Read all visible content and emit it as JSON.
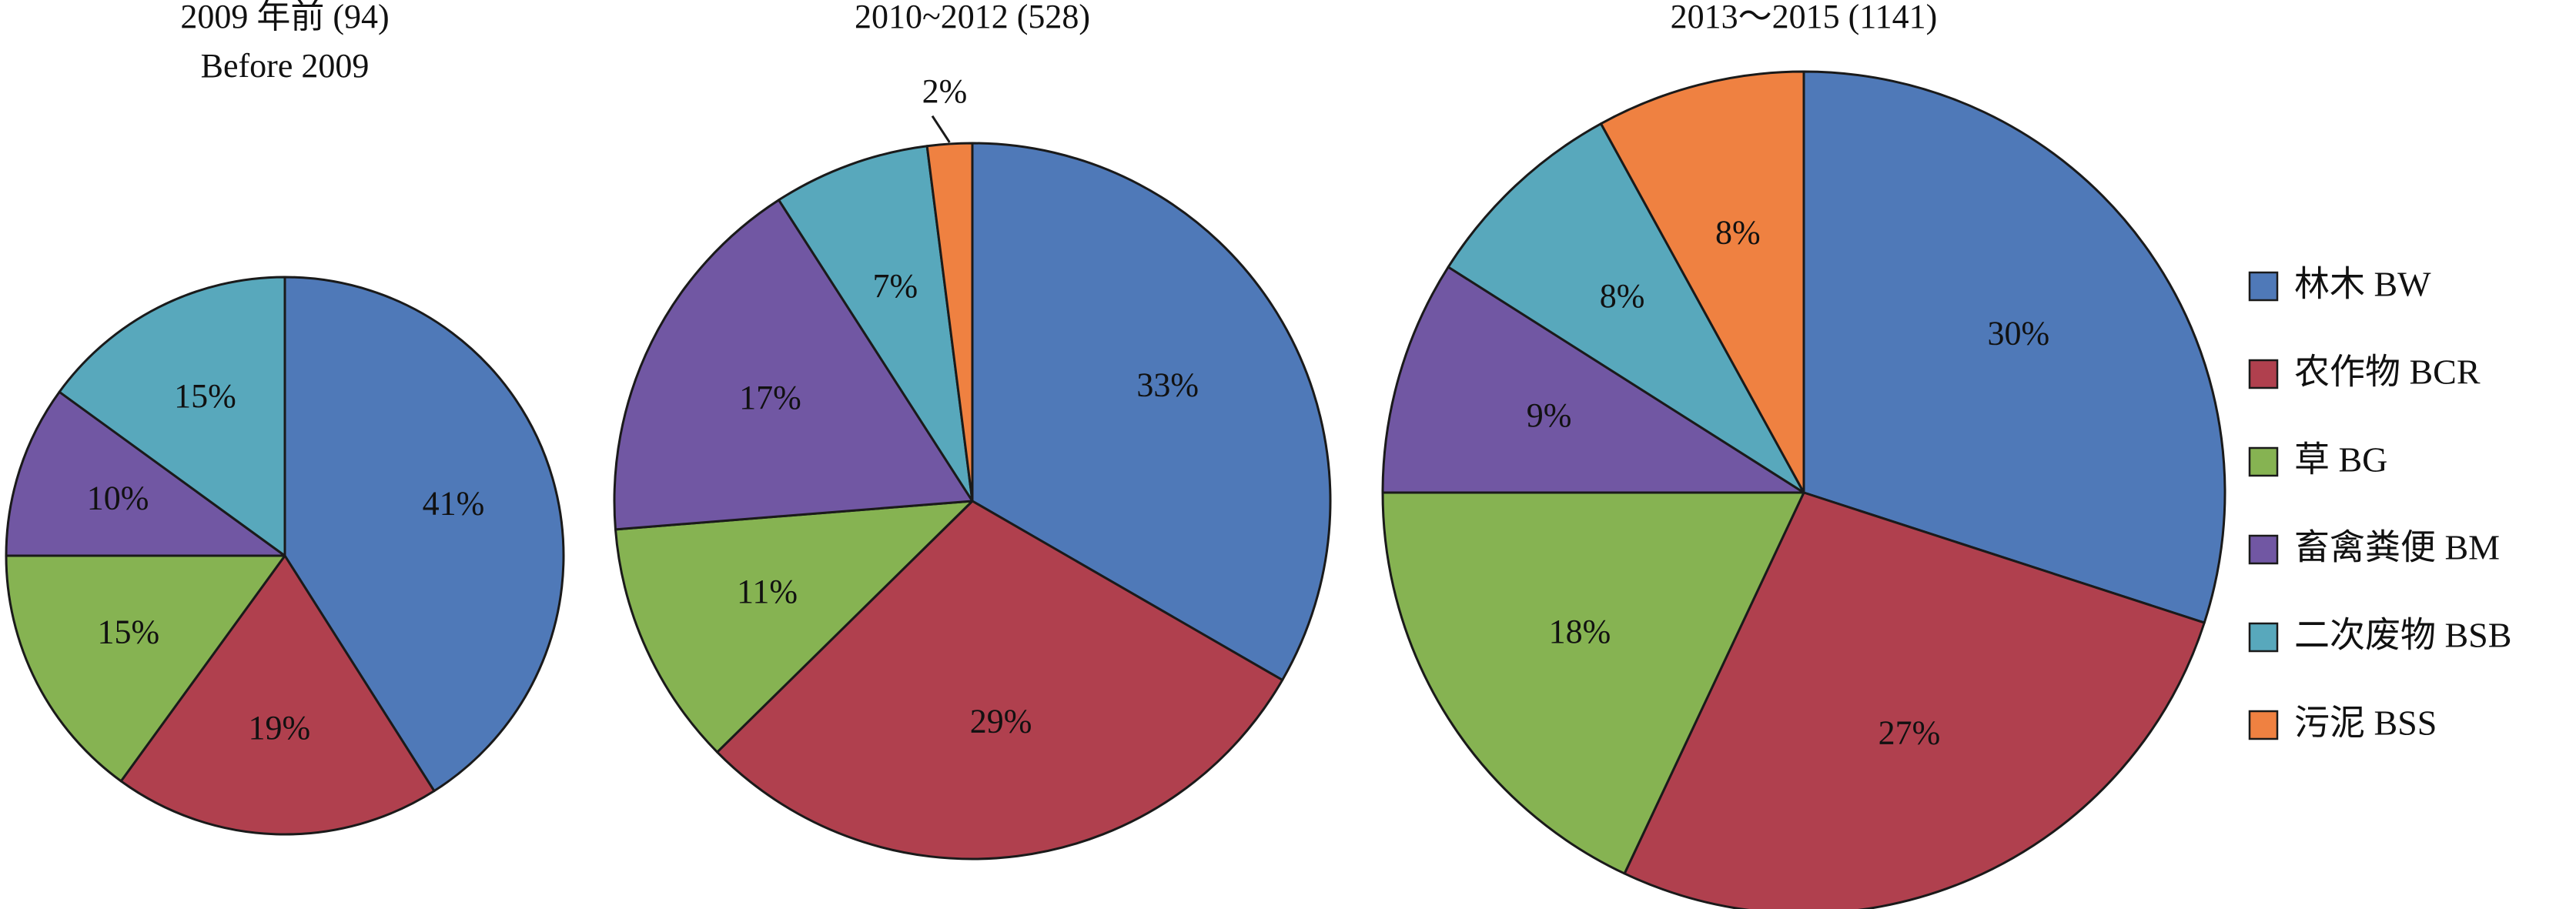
{
  "chart_data": [
    {
      "type": "pie",
      "title": "2009 年前 (94)",
      "subtitle": "Before 2009",
      "categories": [
        "林木 BW",
        "农作物 BCR",
        "草 BG",
        "畜禽粪便 BM",
        "二次废物 BSB",
        "污泥 BSS"
      ],
      "values": [
        41,
        19,
        15,
        10,
        15,
        0
      ],
      "labels": [
        "41%",
        "19%",
        "15%",
        "10%",
        "15%",
        ""
      ]
    },
    {
      "type": "pie",
      "title": "2010~2012 (528)",
      "subtitle": "",
      "categories": [
        "林木 BW",
        "农作物 BCR",
        "草 BG",
        "畜禽粪便 BM",
        "二次废物 BSB",
        "污泥 BSS"
      ],
      "values": [
        33,
        29,
        11,
        17,
        7,
        2
      ],
      "labels": [
        "33%",
        "29%",
        "11%",
        "17%",
        "7%",
        "2%"
      ]
    },
    {
      "type": "pie",
      "title": "2013～2015 (1141)",
      "subtitle": "",
      "categories": [
        "林木 BW",
        "农作物 BCR",
        "草 BG",
        "畜禽粪便 BM",
        "二次废物 BSB",
        "污泥 BSS"
      ],
      "values": [
        30,
        27,
        18,
        9,
        8,
        8
      ],
      "labels": [
        "30%",
        "27%",
        "18%",
        "9%",
        "8%",
        "8%"
      ]
    }
  ],
  "legend": {
    "placement": "right",
    "items": [
      {
        "label": "林木 BW",
        "color": "#4F79B8"
      },
      {
        "label": "农作物 BCR",
        "color": "#B0404E"
      },
      {
        "label": "草 BG",
        "color": "#86B352"
      },
      {
        "label": "畜禽粪便 BM",
        "color": "#7157A3"
      },
      {
        "label": "二次废物 BSB",
        "color": "#58A8BC"
      },
      {
        "label": "污泥 BSS",
        "color": "#EF8141"
      }
    ]
  }
}
